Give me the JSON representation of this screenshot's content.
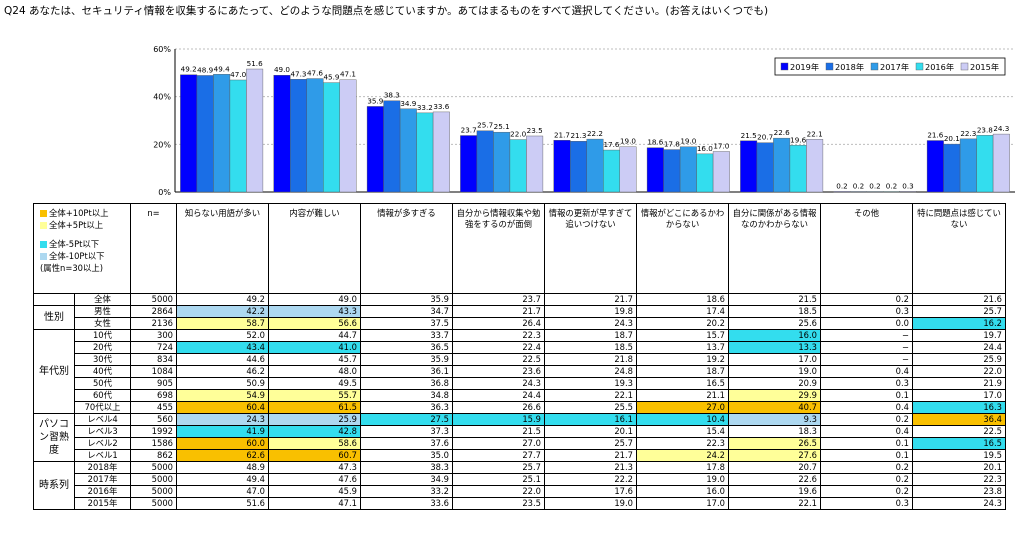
{
  "question": "Q24 あなたは、セキュリティ情報を収集するにあたって、どのような問題点を感じていますか。あてはまるものをすべて選択してください。(お答えはいくつでも)",
  "chart_data": {
    "type": "bar",
    "categories": [
      "知らない用語が多い",
      "内容が難しい",
      "情報が多すぎる",
      "自分から情報収集や勉強をするのが面倒",
      "情報の更新が早すぎて追いつけない",
      "情報がどこにあるかわからない",
      "自分に関係がある情報なのかわからない",
      "その他",
      "特に問題点は感じていない"
    ],
    "series": [
      {
        "name": "2019年",
        "color": "#0000ff",
        "values": [
          49.2,
          49.0,
          35.9,
          23.7,
          21.7,
          18.6,
          21.5,
          0.2,
          21.6
        ]
      },
      {
        "name": "2018年",
        "color": "#1a6ee6",
        "values": [
          48.9,
          47.3,
          38.3,
          25.7,
          21.3,
          17.8,
          20.7,
          0.2,
          20.1
        ]
      },
      {
        "name": "2017年",
        "color": "#2f9be8",
        "values": [
          49.4,
          47.6,
          34.9,
          25.1,
          22.2,
          19.0,
          22.6,
          0.2,
          22.3
        ]
      },
      {
        "name": "2016年",
        "color": "#33ddee",
        "values": [
          47.0,
          45.9,
          33.2,
          22.0,
          17.6,
          16.0,
          19.6,
          0.2,
          23.8
        ]
      },
      {
        "name": "2015年",
        "color": "#ccccf5",
        "values": [
          51.6,
          47.1,
          33.6,
          23.5,
          19.0,
          17.0,
          22.1,
          0.3,
          24.3
        ]
      }
    ],
    "ylim": [
      0,
      60
    ],
    "yticks": [
      "0%",
      "20%",
      "40%",
      "60%"
    ],
    "grid": true,
    "legend_placement": "top-right"
  },
  "table": {
    "n_header": "n=",
    "legend": [
      {
        "label": "全体+10Pt以上",
        "color": "#f9c000"
      },
      {
        "label": "全体+5Pt以上",
        "color": "#ffff99"
      },
      {
        "label": "全体-5Pt以下",
        "color": "#33ddee"
      },
      {
        "label": "全体-10Pt以下",
        "color": "#add8f0"
      }
    ],
    "legend_note": "(属性n=30以上)",
    "groups": [
      {
        "name": "",
        "rows": [
          {
            "label": "全体",
            "n": "5000",
            "v": [
              "49.2",
              "49.0",
              "35.9",
              "23.7",
              "21.7",
              "18.6",
              "21.5",
              "0.2",
              "21.6"
            ],
            "h": [
              "",
              "",
              "",
              "",
              "",
              "",
              "",
              "",
              ""
            ]
          }
        ]
      },
      {
        "name": "性別",
        "rows": [
          {
            "label": "男性",
            "n": "2864",
            "v": [
              "42.2",
              "43.3",
              "34.7",
              "21.7",
              "19.8",
              "17.4",
              "18.5",
              "0.3",
              "25.7"
            ],
            "h": [
              "b",
              "b",
              "",
              "",
              "",
              "",
              "",
              "",
              ""
            ]
          },
          {
            "label": "女性",
            "n": "2136",
            "v": [
              "58.7",
              "56.6",
              "37.5",
              "26.4",
              "24.3",
              "20.2",
              "25.6",
              "0.0",
              "16.2"
            ],
            "h": [
              "y",
              "y",
              "",
              "",
              "",
              "",
              "",
              "",
              "c"
            ]
          }
        ]
      },
      {
        "name": "年代別",
        "rows": [
          {
            "label": "10代",
            "n": "300",
            "v": [
              "52.0",
              "44.7",
              "33.7",
              "22.3",
              "18.7",
              "15.7",
              "16.0",
              "−",
              "19.7"
            ],
            "h": [
              "",
              "",
              "",
              "",
              "",
              "",
              "c",
              "",
              ""
            ]
          },
          {
            "label": "20代",
            "n": "724",
            "v": [
              "43.4",
              "41.0",
              "36.5",
              "22.4",
              "18.5",
              "13.7",
              "13.3",
              "−",
              "24.4"
            ],
            "h": [
              "c",
              "c",
              "",
              "",
              "",
              "",
              "c",
              "",
              ""
            ]
          },
          {
            "label": "30代",
            "n": "834",
            "v": [
              "44.6",
              "45.7",
              "35.9",
              "22.5",
              "21.8",
              "19.2",
              "17.0",
              "−",
              "25.9"
            ],
            "h": [
              "",
              "",
              "",
              "",
              "",
              "",
              "",
              "",
              ""
            ]
          },
          {
            "label": "40代",
            "n": "1084",
            "v": [
              "46.2",
              "48.0",
              "36.1",
              "23.6",
              "24.8",
              "18.7",
              "19.0",
              "0.4",
              "22.0"
            ],
            "h": [
              "",
              "",
              "",
              "",
              "",
              "",
              "",
              "",
              ""
            ]
          },
          {
            "label": "50代",
            "n": "905",
            "v": [
              "50.9",
              "49.5",
              "36.8",
              "24.3",
              "19.3",
              "16.5",
              "20.9",
              "0.3",
              "21.9"
            ],
            "h": [
              "",
              "",
              "",
              "",
              "",
              "",
              "",
              "",
              ""
            ]
          },
          {
            "label": "60代",
            "n": "698",
            "v": [
              "54.9",
              "55.7",
              "34.8",
              "24.4",
              "22.1",
              "21.1",
              "29.9",
              "0.1",
              "17.0"
            ],
            "h": [
              "y",
              "y",
              "",
              "",
              "",
              "",
              "y",
              "",
              ""
            ]
          },
          {
            "label": "70代以上",
            "n": "455",
            "v": [
              "60.4",
              "61.5",
              "36.3",
              "26.6",
              "25.5",
              "27.0",
              "40.7",
              "0.4",
              "16.3"
            ],
            "h": [
              "o",
              "o",
              "",
              "",
              "",
              "o",
              "o",
              "",
              "c"
            ]
          }
        ]
      },
      {
        "name": "パソコン習熟度",
        "rows": [
          {
            "label": "レベル4",
            "n": "560",
            "v": [
              "24.3",
              "25.9",
              "27.5",
              "15.9",
              "16.1",
              "10.4",
              "9.3",
              "0.2",
              "36.4"
            ],
            "h": [
              "b",
              "b",
              "c",
              "c",
              "c",
              "c",
              "b",
              "",
              "o"
            ]
          },
          {
            "label": "レベル3",
            "n": "1992",
            "v": [
              "41.9",
              "42.8",
              "37.3",
              "21.5",
              "20.1",
              "15.4",
              "18.3",
              "0.4",
              "22.5"
            ],
            "h": [
              "c",
              "c",
              "",
              "",
              "",
              "",
              "",
              "",
              ""
            ]
          },
          {
            "label": "レベル2",
            "n": "1586",
            "v": [
              "60.0",
              "58.6",
              "37.6",
              "27.0",
              "25.7",
              "22.3",
              "26.5",
              "0.1",
              "16.5"
            ],
            "h": [
              "o",
              "y",
              "",
              "",
              "",
              "",
              "y",
              "",
              "c"
            ]
          },
          {
            "label": "レベル1",
            "n": "862",
            "v": [
              "62.6",
              "60.7",
              "35.0",
              "27.7",
              "21.7",
              "24.2",
              "27.6",
              "0.1",
              "19.5"
            ],
            "h": [
              "o",
              "o",
              "",
              "",
              "",
              "y",
              "y",
              "",
              ""
            ]
          }
        ]
      },
      {
        "name": "時系列",
        "rows": [
          {
            "label": "2018年",
            "n": "5000",
            "v": [
              "48.9",
              "47.3",
              "38.3",
              "25.7",
              "21.3",
              "17.8",
              "20.7",
              "0.2",
              "20.1"
            ],
            "h": [
              "",
              "",
              "",
              "",
              "",
              "",
              "",
              "",
              ""
            ]
          },
          {
            "label": "2017年",
            "n": "5000",
            "v": [
              "49.4",
              "47.6",
              "34.9",
              "25.1",
              "22.2",
              "19.0",
              "22.6",
              "0.2",
              "22.3"
            ],
            "h": [
              "",
              "",
              "",
              "",
              "",
              "",
              "",
              "",
              ""
            ]
          },
          {
            "label": "2016年",
            "n": "5000",
            "v": [
              "47.0",
              "45.9",
              "33.2",
              "22.0",
              "17.6",
              "16.0",
              "19.6",
              "0.2",
              "23.8"
            ],
            "h": [
              "",
              "",
              "",
              "",
              "",
              "",
              "",
              "",
              ""
            ]
          },
          {
            "label": "2015年",
            "n": "5000",
            "v": [
              "51.6",
              "47.1",
              "33.6",
              "23.5",
              "19.0",
              "17.0",
              "22.1",
              "0.3",
              "24.3"
            ],
            "h": [
              "",
              "",
              "",
              "",
              "",
              "",
              "",
              "",
              ""
            ]
          }
        ]
      }
    ]
  }
}
